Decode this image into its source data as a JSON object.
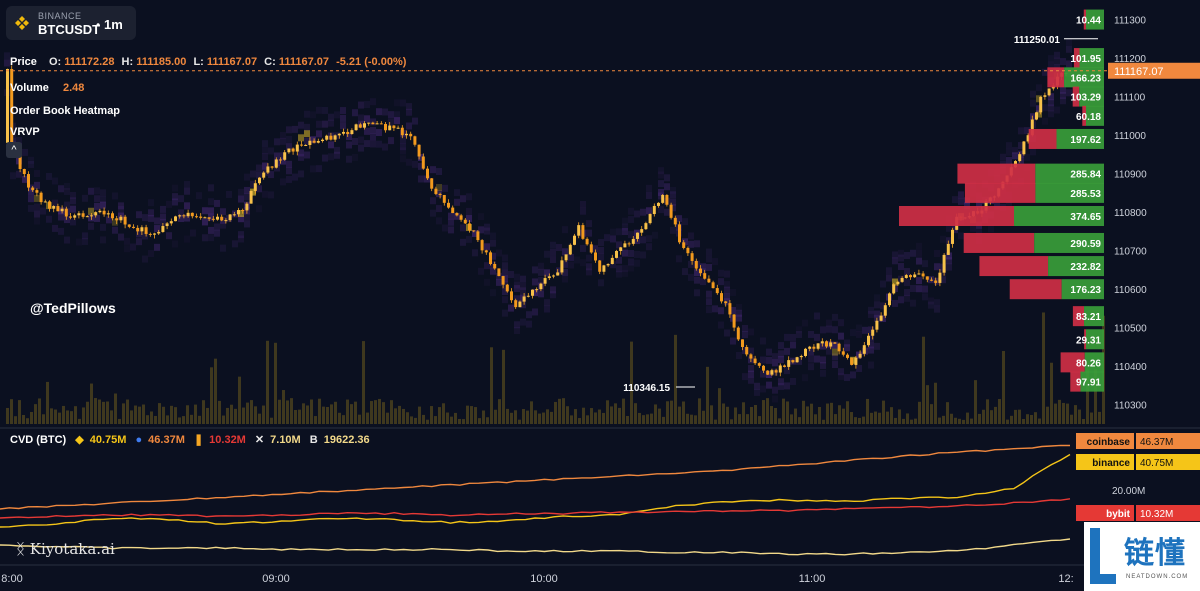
{
  "header": {
    "exchange": "BINANCE",
    "symbol": "BTCUSDT",
    "separator": "•",
    "timeframe": "1m"
  },
  "price_row": {
    "label": "Price",
    "o_label": "O:",
    "o": "111172.28",
    "h_label": "H:",
    "h": "111185.00",
    "l_label": "L:",
    "l": "111167.07",
    "c_label": "C:",
    "c": "111167.07",
    "change": "-5.21 (-0.00%)"
  },
  "volume_row": {
    "label": "Volume",
    "value": "2.48"
  },
  "indicators": {
    "heatmap": "Order Book Heatmap",
    "vrvp": "VRVP",
    "collapse": "^"
  },
  "watermark": "@TedPillows",
  "cvd_row": {
    "label": "CVD (BTC)",
    "items": [
      {
        "icon": "binance-icon",
        "value": "40.75M",
        "color": "#f5c518"
      },
      {
        "icon": "coinbase-icon",
        "value": "46.37M",
        "color": "#f0883e"
      },
      {
        "icon": "bybit-icon",
        "value": "10.32M",
        "color": "#e53935"
      },
      {
        "icon": "okx-icon",
        "value": "7.10M",
        "color": "#f2d98a"
      },
      {
        "icon": "bitget-icon",
        "value": "19622.36",
        "color": "#f2d98a"
      }
    ]
  },
  "footer_logo": "Kiyotaka.ai",
  "brand": {
    "cn": "链懂",
    "en": "NEATDOWN.COM"
  },
  "colors": {
    "background": "#0b1020",
    "candle": "#f5a623",
    "heat_purple": "#4a2a7a",
    "bid": "#3a9d3a",
    "ask": "#cf2f45",
    "coinbase": "#f0883e",
    "binance": "#f5c518",
    "bybit": "#e53935",
    "other": "#f2d98a"
  },
  "chart_data": [
    {
      "type": "candlestick",
      "title": "BTCUSDT 1m",
      "x_ticks": [
        "8:00",
        "09:00",
        "10:00",
        "11:00",
        "12:"
      ],
      "y_ticks": [
        111300,
        111200,
        111100,
        111000,
        110900,
        110800,
        110700,
        110600,
        110500,
        110400,
        110300
      ],
      "ylim": [
        110250,
        111330
      ],
      "current_price": 111167.07,
      "current_price_label": "111167.07",
      "annotations": [
        {
          "label": "111250.01",
          "value": 111250.01,
          "kind": "high"
        },
        {
          "label": "110346.15",
          "value": 110346.15,
          "kind": "low"
        }
      ],
      "close_path": [
        [
          "8:00",
          110980
        ],
        [
          "8:05",
          110860
        ],
        [
          "8:10",
          110810
        ],
        [
          "8:15",
          110790
        ],
        [
          "8:20",
          110800
        ],
        [
          "8:25",
          110790
        ],
        [
          "8:30",
          110760
        ],
        [
          "8:35",
          110740
        ],
        [
          "8:40",
          110800
        ],
        [
          "8:45",
          110790
        ],
        [
          "8:50",
          110780
        ],
        [
          "8:55",
          110800
        ],
        [
          "9:00",
          110900
        ],
        [
          "9:05",
          110950
        ],
        [
          "9:10",
          110980
        ],
        [
          "9:15",
          110990
        ],
        [
          "9:20",
          111010
        ],
        [
          "9:25",
          111030
        ],
        [
          "9:30",
          111020
        ],
        [
          "9:35",
          111000
        ],
        [
          "9:40",
          110870
        ],
        [
          "9:45",
          110800
        ],
        [
          "9:50",
          110750
        ],
        [
          "9:55",
          110650
        ],
        [
          "10:00",
          110560
        ],
        [
          "10:05",
          110600
        ],
        [
          "10:10",
          110650
        ],
        [
          "10:15",
          110760
        ],
        [
          "10:20",
          110650
        ],
        [
          "10:25",
          110700
        ],
        [
          "10:30",
          110760
        ],
        [
          "10:35",
          110850
        ],
        [
          "10:40",
          110700
        ],
        [
          "10:45",
          110630
        ],
        [
          "10:50",
          110560
        ],
        [
          "10:55",
          110420
        ],
        [
          "11:00",
          110380
        ],
        [
          "11:05",
          110410
        ],
        [
          "11:10",
          110450
        ],
        [
          "11:15",
          110460
        ],
        [
          "11:20",
          110410
        ],
        [
          "11:25",
          110490
        ],
        [
          "11:30",
          110620
        ],
        [
          "11:35",
          110640
        ],
        [
          "11:40",
          110620
        ],
        [
          "11:45",
          110790
        ],
        [
          "11:50",
          110800
        ],
        [
          "11:55",
          110860
        ],
        [
          "12:00",
          110960
        ],
        [
          "12:05",
          111100
        ],
        [
          "12:10",
          111160
        ],
        [
          "12:12",
          111167
        ]
      ],
      "vrvp_bins": [
        {
          "price": 111300,
          "bid_label": "10.44",
          "bid": 10.44,
          "ask": 12
        },
        {
          "price": 111200,
          "bid_label": "101.95",
          "bid": 101.95,
          "ask": 30
        },
        {
          "price": 111150,
          "bid_label": "166.23",
          "bid": 166.23,
          "ask": 90
        },
        {
          "price": 111100,
          "bid_label": "103.29",
          "bid": 103.29,
          "ask": 35
        },
        {
          "price": 111050,
          "bid_label": "60.18",
          "bid": 60.18,
          "ask": 20
        },
        {
          "price": 110990,
          "bid_label": "197.62",
          "bid": 197.62,
          "ask": 150
        },
        {
          "price": 110900,
          "bid_label": "285.84",
          "bid": 285.84,
          "ask": 420
        },
        {
          "price": 110850,
          "bid_label": "285.53",
          "bid": 285.53,
          "ask": 380
        },
        {
          "price": 110790,
          "bid_label": "374.65",
          "bid": 374.65,
          "ask": 620
        },
        {
          "price": 110720,
          "bid_label": "290.59",
          "bid": 290.59,
          "ask": 380
        },
        {
          "price": 110660,
          "bid_label": "232.82",
          "bid": 232.82,
          "ask": 370
        },
        {
          "price": 110600,
          "bid_label": "176.23",
          "bid": 176.23,
          "ask": 280
        },
        {
          "price": 110530,
          "bid_label": "83.21",
          "bid": 83.21,
          "ask": 60
        },
        {
          "price": 110470,
          "bid_label": "29.31",
          "bid": 29.31,
          "ask": 10
        },
        {
          "price": 110410,
          "bid_label": "80.26",
          "bid": 80.26,
          "ask": 130
        },
        {
          "price": 110360,
          "bid_label": "97.91",
          "bid": 97.91,
          "ask": 55
        }
      ]
    },
    {
      "type": "line",
      "title": "CVD (BTC)",
      "y_ticks": [
        "20.00M"
      ],
      "series": [
        {
          "name": "coinbase",
          "value_label": "46.37M",
          "color": "#f0883e",
          "values": [
            4,
            6,
            8,
            10,
            12,
            14,
            16,
            18,
            20,
            22,
            24,
            26,
            28,
            30,
            33,
            36,
            39,
            42,
            44,
            46.37
          ]
        },
        {
          "name": "binance",
          "value_label": "40.75M",
          "color": "#f5c518",
          "values": [
            -8,
            -6,
            -2,
            -3,
            -6,
            -4,
            -2,
            -3,
            -5,
            -4,
            -1,
            0,
            6,
            9,
            10,
            9,
            11,
            12,
            18,
            40.75
          ]
        },
        {
          "name": "bybit",
          "value_label": "10.32M",
          "color": "#e53935",
          "values": [
            -2,
            -1,
            0,
            0,
            -1,
            0,
            1,
            1,
            0,
            1,
            1,
            2,
            2,
            3,
            3,
            4,
            5,
            6,
            8,
            10.32
          ]
        },
        {
          "name": "",
          "color": "#f2d98a",
          "values": [
            -20,
            -21,
            -22,
            -22,
            -22,
            -23,
            -23,
            -23,
            -23,
            -24,
            -24,
            -24,
            -25,
            -25,
            -26,
            -26,
            -25,
            -24,
            -20,
            -16
          ]
        }
      ]
    }
  ]
}
